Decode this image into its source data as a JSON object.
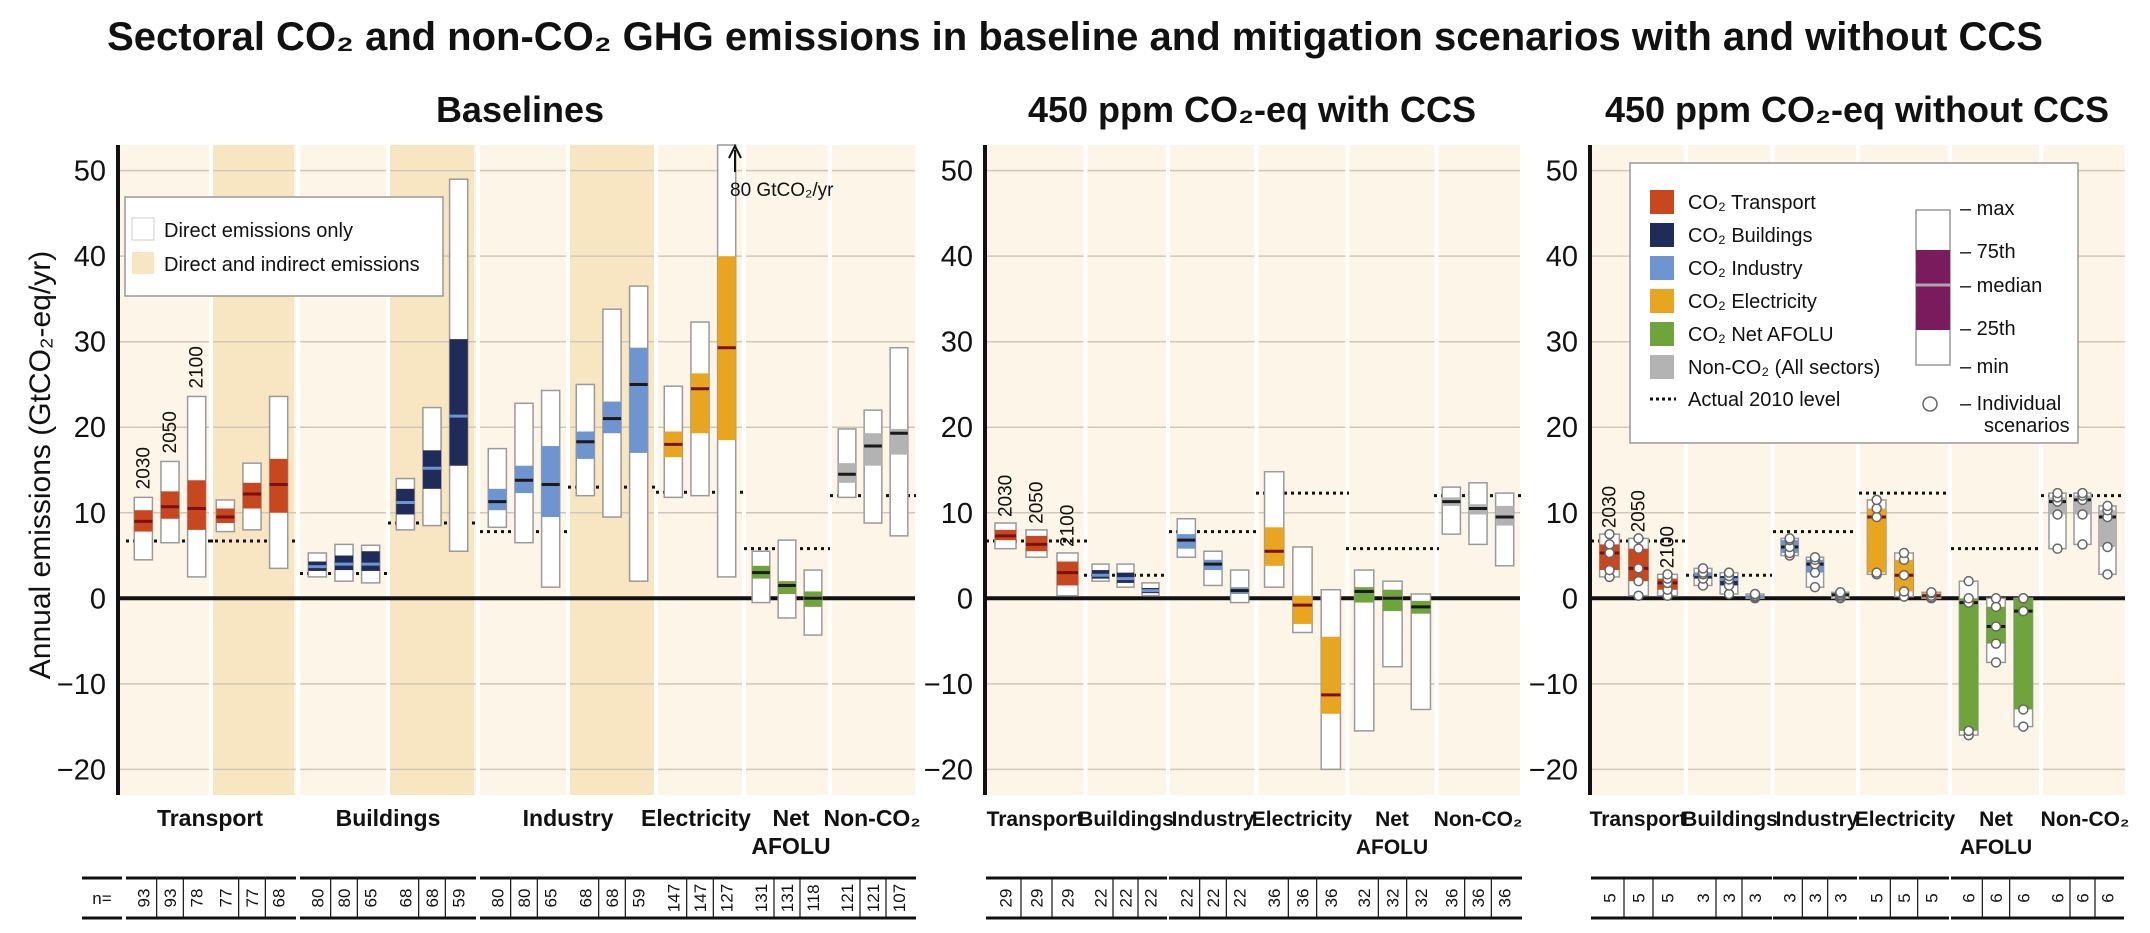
{
  "title": "Sectoral CO₂ and non-CO₂ GHG emissions in baseline and mitigation scenarios with and without CCS",
  "ylabel": "Annual emissions (GtCO₂-eq/yr)",
  "yticks": [
    50,
    40,
    30,
    20,
    10,
    0,
    -10,
    -20
  ],
  "n_prefix": "n=",
  "colors": {
    "transport": "#c8471e",
    "buildings": "#1f2c5a",
    "industry": "#6e95cf",
    "electricity": "#e8a51f",
    "afolu": "#6fa33b",
    "nonco2": "#b3b3b3",
    "background": "#fdf6e8",
    "indirect_band": "#f8e6c2",
    "median_dark": "#1a1a1a",
    "legend_iqr": "#7a1b5e"
  },
  "legend": {
    "items": [
      {
        "label": "CO₂ Transport",
        "key": "transport"
      },
      {
        "label": "CO₂ Buildings",
        "key": "buildings"
      },
      {
        "label": "CO₂ Industry",
        "key": "industry"
      },
      {
        "label": "CO₂ Electricity",
        "key": "electricity"
      },
      {
        "label": "CO₂ Net AFOLU",
        "key": "afolu"
      },
      {
        "label": "Non-CO₂ (All sectors)",
        "key": "nonco2"
      }
    ],
    "dotted_label": "Actual 2010 level",
    "stats": [
      "max",
      "75th",
      "median",
      "25th",
      "min"
    ],
    "scenarios_label_1": "Individual",
    "scenarios_label_2": "scenarios"
  },
  "baseline_legend": {
    "direct": "Direct emissions only",
    "indirect": "Direct and indirect emissions"
  },
  "annotation": "80 GtCO₂/yr",
  "chart_data": [
    {
      "type": "boxplot",
      "title": "Baselines",
      "ylim": [
        -23,
        53
      ],
      "years": [
        "2030",
        "2050",
        "2100"
      ],
      "groups": [
        {
          "sector": "Transport",
          "color": "transport",
          "band": "direct",
          "actual_2010": 6.7,
          "n": [
            93,
            93,
            78
          ],
          "boxes": [
            {
              "min": 4.5,
              "q1": 7.8,
              "median": 9.0,
              "q3": 10.3,
              "max": 11.8
            },
            {
              "min": 6.5,
              "q1": 9.3,
              "median": 10.7,
              "q3": 12.5,
              "max": 16.0
            },
            {
              "min": 2.5,
              "q1": 8.0,
              "median": 10.5,
              "q3": 13.8,
              "max": 23.6
            }
          ]
        },
        {
          "sector": "",
          "color": "transport",
          "band": "indirect",
          "actual_2010": 6.7,
          "n": [
            77,
            77,
            68
          ],
          "boxes": [
            {
              "min": 7.8,
              "q1": 8.8,
              "median": 9.5,
              "q3": 10.5,
              "max": 11.5
            },
            {
              "min": 8.0,
              "q1": 10.5,
              "median": 12.2,
              "q3": 13.5,
              "max": 15.8
            },
            {
              "min": 3.5,
              "q1": 10.0,
              "median": 13.3,
              "q3": 16.3,
              "max": 23.6
            }
          ]
        },
        {
          "sector": "Buildings",
          "color": "buildings",
          "band": "direct",
          "actual_2010": 2.9,
          "n": [
            80,
            80,
            65
          ],
          "boxes": [
            {
              "min": 2.5,
              "q1": 3.2,
              "median": 3.7,
              "q3": 4.3,
              "max": 5.3
            },
            {
              "min": 2.0,
              "q1": 3.3,
              "median": 4.0,
              "q3": 5.0,
              "max": 6.3
            },
            {
              "min": 1.8,
              "q1": 3.2,
              "median": 4.0,
              "q3": 5.5,
              "max": 6.2
            }
          ]
        },
        {
          "sector": "",
          "color": "buildings",
          "band": "indirect",
          "actual_2010": 8.8,
          "n": [
            68,
            68,
            59
          ],
          "boxes": [
            {
              "min": 8.0,
              "q1": 9.8,
              "median": 11.2,
              "q3": 12.8,
              "max": 14.0
            },
            {
              "min": 8.5,
              "q1": 12.8,
              "median": 15.2,
              "q3": 17.3,
              "max": 22.3
            },
            {
              "min": 5.5,
              "q1": 15.5,
              "median": 21.3,
              "q3": 30.3,
              "max": 49.0
            }
          ]
        },
        {
          "sector": "Industry",
          "color": "industry",
          "band": "direct",
          "actual_2010": 7.8,
          "n": [
            80,
            80,
            65
          ],
          "boxes": [
            {
              "min": 8.3,
              "q1": 10.3,
              "median": 11.3,
              "q3": 12.8,
              "max": 17.5
            },
            {
              "min": 6.5,
              "q1": 12.3,
              "median": 13.8,
              "q3": 15.5,
              "max": 22.8
            },
            {
              "min": 1.3,
              "q1": 9.5,
              "median": 13.3,
              "q3": 17.8,
              "max": 24.3
            }
          ]
        },
        {
          "sector": "",
          "color": "industry",
          "band": "indirect",
          "actual_2010": 13.0,
          "n": [
            68,
            68,
            59
          ],
          "boxes": [
            {
              "min": 12.0,
              "q1": 16.3,
              "median": 18.3,
              "q3": 19.5,
              "max": 25.0
            },
            {
              "min": 9.5,
              "q1": 19.3,
              "median": 21.0,
              "q3": 23.0,
              "max": 33.8
            },
            {
              "min": 2.0,
              "q1": 17.0,
              "median": 25.0,
              "q3": 29.3,
              "max": 36.5
            }
          ]
        },
        {
          "sector": "Electricity",
          "color": "electricity",
          "band": "direct",
          "actual_2010": 12.4,
          "n": [
            147,
            147,
            127
          ],
          "boxes": [
            {
              "min": 11.8,
              "q1": 16.5,
              "median": 18.0,
              "q3": 19.5,
              "max": 24.8
            },
            {
              "min": 12.0,
              "q1": 19.3,
              "median": 24.5,
              "q3": 26.3,
              "max": 32.3
            },
            {
              "min": 2.5,
              "q1": 18.5,
              "median": 29.3,
              "q3": 40.0,
              "max": 53
            }
          ]
        },
        {
          "sector": "Net AFOLU",
          "color": "afolu",
          "band": "direct",
          "actual_2010": 5.8,
          "n": [
            131,
            131,
            118
          ],
          "boxes": [
            {
              "min": -0.5,
              "q1": 2.3,
              "median": 3.0,
              "q3": 3.8,
              "max": 5.5
            },
            {
              "min": -2.3,
              "q1": 0.5,
              "median": 1.5,
              "q3": 2.0,
              "max": 6.8
            },
            {
              "min": -4.3,
              "q1": -1.0,
              "median": 0.0,
              "q3": 0.8,
              "max": 3.3
            }
          ]
        },
        {
          "sector": "Non-CO₂",
          "color": "nonco2",
          "band": "direct",
          "actual_2010": 12.0,
          "n": [
            121,
            121,
            107
          ],
          "boxes": [
            {
              "min": 11.8,
              "q1": 13.5,
              "median": 14.5,
              "q3": 15.8,
              "max": 19.8
            },
            {
              "min": 8.8,
              "q1": 15.5,
              "median": 17.8,
              "q3": 19.3,
              "max": 22.0
            },
            {
              "min": 7.3,
              "q1": 16.8,
              "median": 19.3,
              "q3": 19.8,
              "max": 29.3
            }
          ]
        }
      ]
    },
    {
      "type": "boxplot",
      "title": "450 ppm CO₂-eq with CCS",
      "ylim": [
        -23,
        53
      ],
      "years": [
        "2030",
        "2050",
        "2100"
      ],
      "groups": [
        {
          "sector": "Transport",
          "color": "transport",
          "band": "direct",
          "actual_2010": 6.7,
          "n": [
            29,
            29,
            29
          ],
          "boxes": [
            {
              "min": 5.8,
              "q1": 6.8,
              "median": 7.3,
              "q3": 8.0,
              "max": 8.8
            },
            {
              "min": 4.8,
              "q1": 5.5,
              "median": 6.3,
              "q3": 7.3,
              "max": 8.0
            },
            {
              "min": 0.3,
              "q1": 1.5,
              "median": 3.0,
              "q3": 4.3,
              "max": 5.3
            }
          ]
        },
        {
          "sector": "Buildings",
          "color": "buildings",
          "band": "direct",
          "actual_2010": 2.7,
          "n": [
            22,
            22,
            22
          ],
          "boxes": [
            {
              "min": 2.0,
              "q1": 2.3,
              "median": 2.7,
              "q3": 3.3,
              "max": 4.0
            },
            {
              "min": 1.3,
              "q1": 1.8,
              "median": 2.3,
              "q3": 3.0,
              "max": 4.0
            },
            {
              "min": 0.3,
              "q1": 0.6,
              "median": 0.9,
              "q3": 1.2,
              "max": 1.8
            }
          ]
        },
        {
          "sector": "Industry",
          "color": "industry",
          "band": "direct",
          "actual_2010": 7.8,
          "n": [
            22,
            22,
            22
          ],
          "boxes": [
            {
              "min": 4.8,
              "q1": 5.8,
              "median": 6.8,
              "q3": 7.5,
              "max": 9.3
            },
            {
              "min": 1.5,
              "q1": 3.3,
              "median": 4.0,
              "q3": 4.5,
              "max": 5.5
            },
            {
              "min": -0.5,
              "q1": 0.5,
              "median": 0.9,
              "q3": 1.3,
              "max": 3.3
            }
          ]
        },
        {
          "sector": "Electricity",
          "color": "electricity",
          "band": "direct",
          "actual_2010": 12.3,
          "n": [
            36,
            36,
            36
          ],
          "boxes": [
            {
              "min": 1.3,
              "q1": 3.8,
              "median": 5.5,
              "q3": 8.3,
              "max": 14.8
            },
            {
              "min": -4.0,
              "q1": -3.0,
              "median": -0.8,
              "q3": 0.3,
              "max": 6.0
            },
            {
              "min": -20.0,
              "q1": -13.5,
              "median": -11.3,
              "q3": -4.5,
              "max": 1.0
            }
          ]
        },
        {
          "sector": "Net AFOLU",
          "color": "afolu",
          "band": "direct",
          "actual_2010": 5.8,
          "n": [
            32,
            32,
            32
          ],
          "boxes": [
            {
              "min": -15.5,
              "q1": -0.5,
              "median": 0.8,
              "q3": 1.3,
              "max": 3.3
            },
            {
              "min": -8.0,
              "q1": -1.5,
              "median": 0.0,
              "q3": 1.0,
              "max": 2.0
            },
            {
              "min": -13.0,
              "q1": -1.8,
              "median": -1.0,
              "q3": -0.3,
              "max": 0.5
            }
          ]
        },
        {
          "sector": "Non-CO₂",
          "color": "nonco2",
          "band": "direct",
          "actual_2010": 12.0,
          "n": [
            36,
            36,
            36
          ],
          "boxes": [
            {
              "min": 7.5,
              "q1": 10.8,
              "median": 11.3,
              "q3": 11.8,
              "max": 13.0
            },
            {
              "min": 6.3,
              "q1": 9.8,
              "median": 10.5,
              "q3": 11.0,
              "max": 13.5
            },
            {
              "min": 3.8,
              "q1": 8.5,
              "median": 9.5,
              "q3": 10.8,
              "max": 12.3
            }
          ]
        }
      ]
    },
    {
      "type": "boxplot",
      "title": "450 ppm CO₂-eq without CCS",
      "ylim": [
        -23,
        53
      ],
      "years": [
        "2030",
        "2050",
        "2100"
      ],
      "groups": [
        {
          "sector": "Transport",
          "color": "transport",
          "band": "direct",
          "actual_2010": 6.7,
          "n": [
            5,
            5,
            5
          ],
          "boxes": [
            {
              "min": 2.5,
              "q1": 3.3,
              "median": 5.3,
              "q3": 6.3,
              "max": 7.5
            },
            {
              "min": 0.3,
              "q1": 2.0,
              "median": 3.5,
              "q3": 5.8,
              "max": 7.0
            },
            {
              "min": 0.3,
              "q1": 1.0,
              "median": 1.8,
              "q3": 2.3,
              "max": 2.8
            }
          ]
        },
        {
          "sector": "Buildings",
          "color": "buildings",
          "band": "direct",
          "actual_2010": 2.7,
          "n": [
            3,
            3,
            3
          ],
          "boxes": [
            {
              "min": 1.5,
              "q1": 2.3,
              "median": 2.8,
              "q3": 3.0,
              "max": 3.5
            },
            {
              "min": 0.5,
              "q1": 1.5,
              "median": 2.2,
              "q3": 2.6,
              "max": 3.0
            },
            {
              "min": 0.0,
              "q1": 0.1,
              "median": 0.2,
              "q3": 0.3,
              "max": 0.5
            }
          ]
        },
        {
          "sector": "Industry",
          "color": "industry",
          "band": "direct",
          "actual_2010": 7.8,
          "n": [
            3,
            3,
            3
          ],
          "boxes": [
            {
              "min": 5.0,
              "q1": 5.3,
              "median": 6.0,
              "q3": 6.8,
              "max": 7.0
            },
            {
              "min": 1.3,
              "q1": 3.0,
              "median": 4.0,
              "q3": 4.5,
              "max": 4.8
            },
            {
              "min": 0.0,
              "q1": 0.2,
              "median": 0.4,
              "q3": 0.6,
              "max": 0.7
            }
          ]
        },
        {
          "sector": "Electricity",
          "color": "electricity",
          "band": "direct",
          "actual_2010": 12.3,
          "n": [
            5,
            5,
            5
          ],
          "boxes": [
            {
              "min": 2.8,
              "q1": 3.0,
              "median": 9.5,
              "q3": 10.5,
              "max": 11.5
            },
            {
              "min": 0.2,
              "q1": 0.8,
              "median": 2.7,
              "q3": 4.5,
              "max": 5.3
            },
            {
              "min": 0.0,
              "q1": 0.1,
              "median": 0.3,
              "q3": 0.6,
              "max": 0.7
            }
          ]
        },
        {
          "sector": "Net AFOLU",
          "color": "afolu",
          "band": "direct",
          "actual_2010": 5.8,
          "n": [
            6,
            6,
            6
          ],
          "boxes": [
            {
              "min": -16.0,
              "q1": -15.5,
              "median": -0.5,
              "q3": 0.0,
              "max": 2.0
            },
            {
              "min": -7.5,
              "q1": -5.3,
              "median": -3.3,
              "q3": -1.0,
              "max": 0.0
            },
            {
              "min": -15.0,
              "q1": -13.0,
              "median": -1.5,
              "q3": 0.0,
              "max": 0.0
            }
          ]
        },
        {
          "sector": "Non-CO₂",
          "color": "nonco2",
          "band": "direct",
          "actual_2010": 12.0,
          "n": [
            6,
            6,
            6
          ],
          "boxes": [
            {
              "min": 5.8,
              "q1": 9.8,
              "median": 11.3,
              "q3": 11.8,
              "max": 12.3
            },
            {
              "min": 6.3,
              "q1": 9.8,
              "median": 11.5,
              "q3": 12.0,
              "max": 12.3
            },
            {
              "min": 2.8,
              "q1": 6.0,
              "median": 9.5,
              "q3": 10.3,
              "max": 10.8
            }
          ]
        }
      ]
    }
  ]
}
